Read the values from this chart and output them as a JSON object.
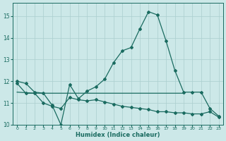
{
  "xlabel": "Humidex (Indice chaleur)",
  "background_color": "#cce8e8",
  "line_color": "#1a6b60",
  "grid_color": "#aacece",
  "xlim": [
    -0.5,
    23.5
  ],
  "ylim": [
    10.0,
    15.6
  ],
  "yticks": [
    10,
    11,
    12,
    13,
    14,
    15
  ],
  "xticks": [
    0,
    1,
    2,
    3,
    4,
    5,
    6,
    7,
    8,
    9,
    10,
    11,
    12,
    13,
    14,
    15,
    16,
    17,
    18,
    19,
    20,
    21,
    22,
    23
  ],
  "line_peak_x": [
    0,
    1,
    2,
    3,
    4,
    5,
    6,
    7,
    8,
    9,
    10,
    11,
    12,
    13,
    14,
    15,
    16,
    17,
    18,
    19,
    20,
    21,
    22,
    23
  ],
  "line_peak_y": [
    12.0,
    11.9,
    11.5,
    11.45,
    10.9,
    10.0,
    11.85,
    11.2,
    11.55,
    11.75,
    12.1,
    12.85,
    13.4,
    13.55,
    14.4,
    15.2,
    15.05,
    13.85,
    12.5,
    11.5,
    11.5,
    11.5,
    10.75,
    10.4
  ],
  "line_flat_x": [
    0,
    2,
    5,
    6,
    17,
    19
  ],
  "line_flat_y": [
    11.5,
    11.45,
    11.45,
    11.45,
    11.45,
    11.45
  ],
  "line_low_x": [
    0,
    1,
    2,
    3,
    4,
    5,
    6,
    7,
    8,
    9,
    10,
    11,
    12,
    13,
    14,
    15,
    16,
    17,
    18,
    19,
    20,
    21,
    22,
    23
  ],
  "line_low_y": [
    11.9,
    11.45,
    11.45,
    11.0,
    10.85,
    10.75,
    11.25,
    11.15,
    11.1,
    11.15,
    11.05,
    10.95,
    10.85,
    10.8,
    10.75,
    10.7,
    10.6,
    10.6,
    10.55,
    10.55,
    10.5,
    10.5,
    10.6,
    10.35
  ],
  "marker_size": 2.0,
  "linewidth": 0.9
}
